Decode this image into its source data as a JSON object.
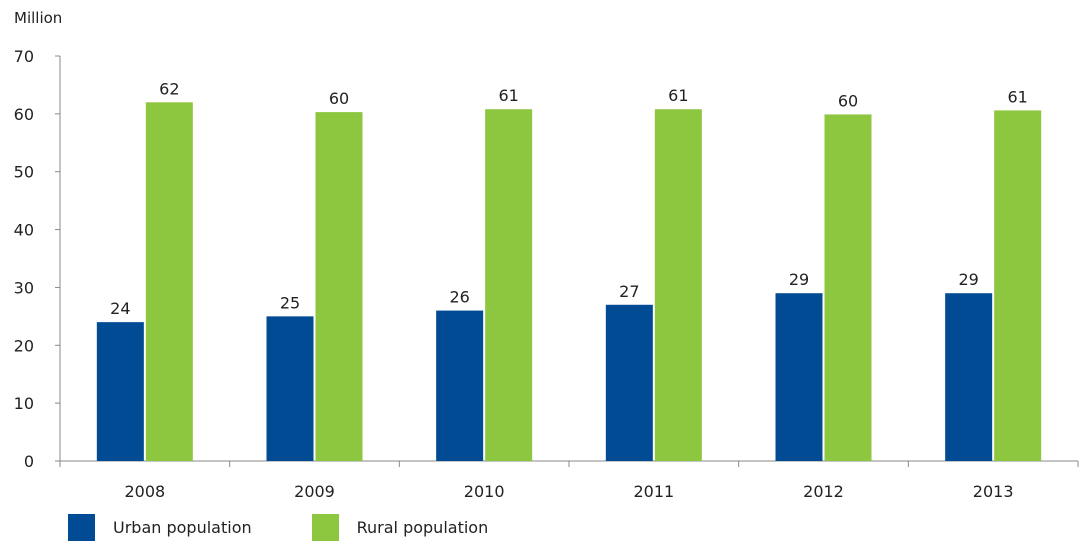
{
  "chart_data": {
    "type": "bar",
    "unit_label": "Million",
    "categories": [
      "2008",
      "2009",
      "2010",
      "2011",
      "2012",
      "2013"
    ],
    "series": [
      {
        "name": "Urban population",
        "color": "#004b93",
        "values": [
          24,
          25,
          26,
          27,
          29,
          29
        ],
        "labels": [
          "24",
          "25",
          "26",
          "27",
          "29",
          "29"
        ]
      },
      {
        "name": "Rural population",
        "color": "#8dc63f",
        "values": [
          62,
          60.3,
          60.8,
          60.8,
          59.9,
          60.6
        ],
        "labels": [
          "62",
          "60",
          "61",
          "61",
          "60",
          "61"
        ]
      }
    ],
    "ylim": [
      0,
      70
    ],
    "yticks": [
      "0",
      "10",
      "20",
      "30",
      "40",
      "50",
      "60",
      "70"
    ],
    "grid": false,
    "legend_position": "bottom-left"
  }
}
